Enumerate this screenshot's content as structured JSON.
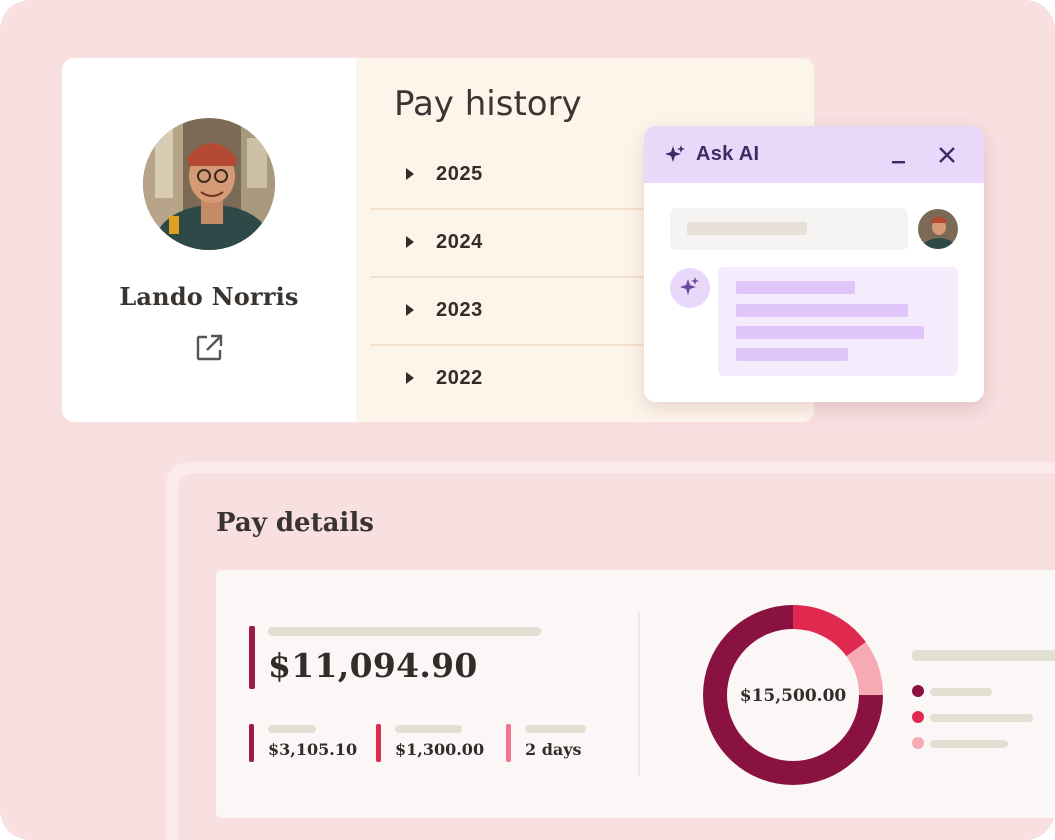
{
  "profile": {
    "name": "Lando Norris",
    "open_icon": "external-link-icon"
  },
  "pay_history": {
    "title": "Pay history",
    "years": [
      "2025",
      "2024",
      "2023",
      "2022"
    ]
  },
  "ask_ai": {
    "title": "Ask AI",
    "sparkle_icon": "sparkle-icon",
    "minimize_icon": "minimize-icon",
    "close_icon": "close-icon",
    "accent": "#ead8fb"
  },
  "pay_details": {
    "title": "Pay details",
    "net_amount": "$11,094.90",
    "breakdown": [
      {
        "value": "$3,105.10",
        "color": "#9b1b45"
      },
      {
        "value": "$1,300.00",
        "color": "#e0294f"
      },
      {
        "value": "2 days",
        "color": "#f0758d"
      }
    ],
    "chart_center_label": "$15,500.00",
    "chart_data": {
      "type": "pie",
      "values": [
        75,
        15,
        10
      ],
      "colors": [
        "#8a1240",
        "#e0294f",
        "#f6aab3"
      ]
    }
  }
}
